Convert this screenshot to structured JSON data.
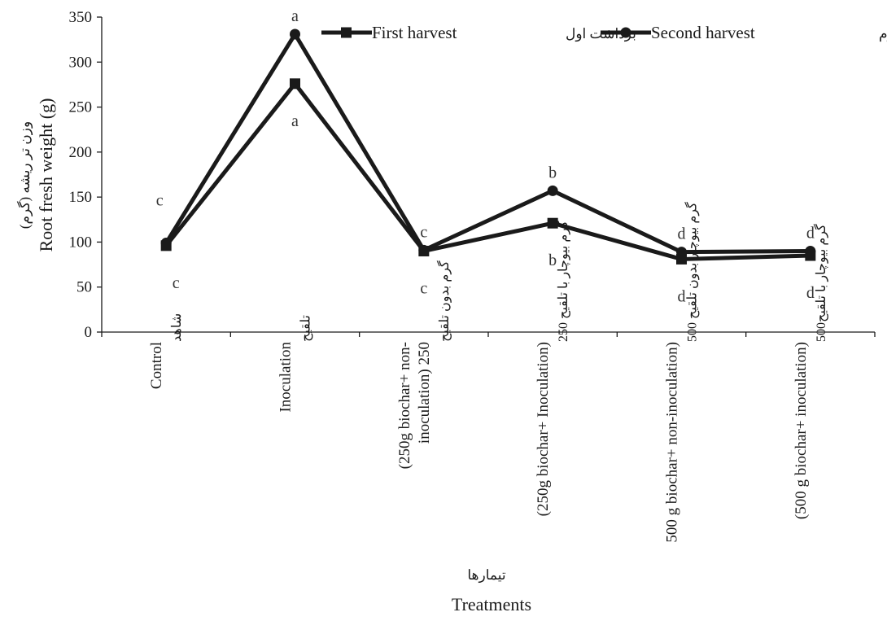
{
  "chart_data": {
    "type": "line",
    "categories": [
      {
        "en": [
          "Control"
        ],
        "fa": [
          "شاهد"
        ]
      },
      {
        "en": [
          "Inoculation"
        ],
        "fa": [
          "تلقیح"
        ]
      },
      {
        "en": [
          "(250g biochar+  non-",
          "inoculation) 250"
        ],
        "fa": [
          "گرم بدون  تلقیح"
        ]
      },
      {
        "en": [
          "(250g biochar+ Inoculation)"
        ],
        "fa": [
          "گرم بیوچار با تلقیح 250"
        ]
      },
      {
        "en": [
          "500 g biochar+  non-inoculation)"
        ],
        "fa": [
          "گرم بیوچار بدون  تلقیح 500"
        ]
      },
      {
        "en": [
          "(500 g biochar+  inoculation)"
        ],
        "fa": [
          "گرم بیوچار با تلقیح500"
        ]
      }
    ],
    "series": [
      {
        "name": "First harvest",
        "name_fa": "برداشت اول",
        "marker": "square",
        "values": [
          96,
          276,
          90,
          121,
          81,
          85
        ],
        "letters": [
          "c",
          "a",
          "c",
          "b",
          "d",
          "d"
        ]
      },
      {
        "name": "Second harvest",
        "name_fa": "برداشت دوم",
        "marker": "circle",
        "values": [
          99,
          331,
          91,
          157,
          89,
          90
        ],
        "letters": [
          "c",
          "a",
          "c",
          "b",
          "d",
          "d"
        ]
      }
    ],
    "yticks": [
      0,
      50,
      100,
      150,
      200,
      250,
      300,
      350
    ],
    "ylim": [
      0,
      350
    ],
    "ylabel": "Root fresh weight (g)",
    "ylabel_fa": "وزن تر ریشه (گرم)",
    "xlabel": "Treatments",
    "xlabel_fa": "تیمارها",
    "legend_position": "top",
    "grid": false,
    "line_color": "#1a1a1a"
  }
}
